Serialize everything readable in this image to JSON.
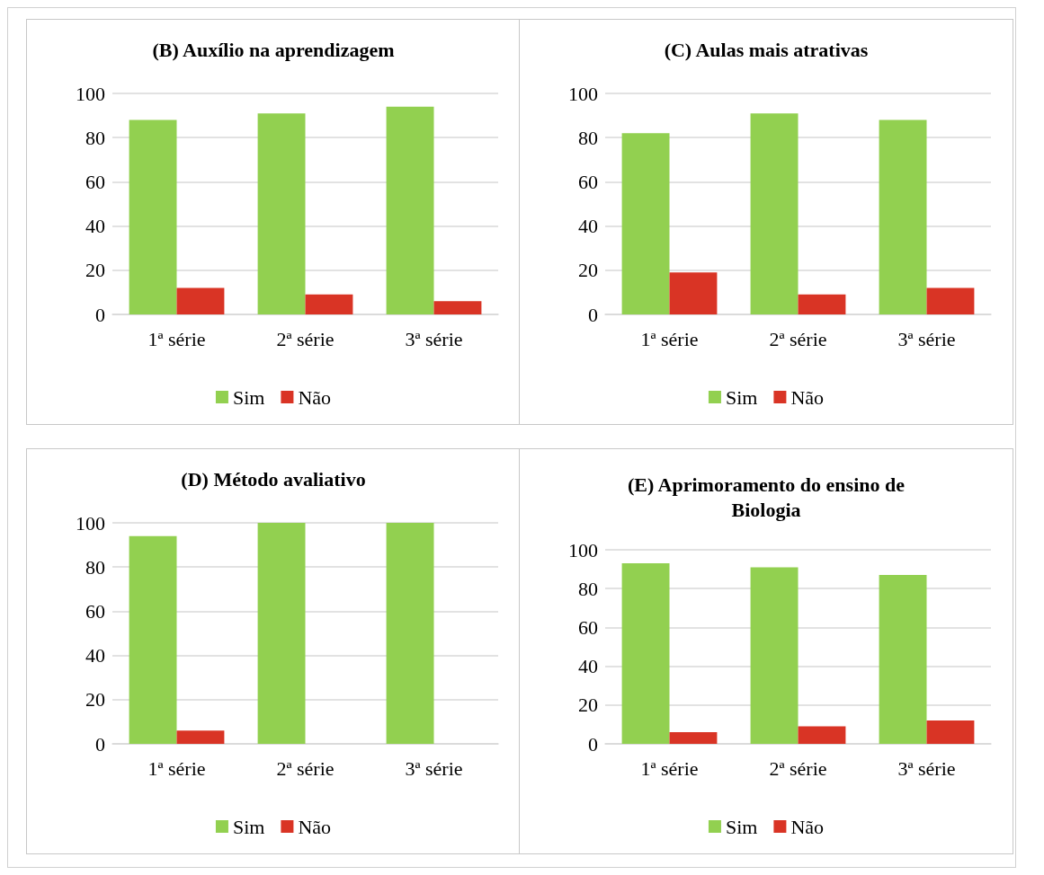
{
  "chart_data": [
    {
      "type": "bar",
      "title": "(B) Auxílio na aprendizagem",
      "categories": [
        "1ª série",
        "2ª série",
        "3ª série"
      ],
      "series": [
        {
          "name": "Sim",
          "color": "#92d050",
          "values": [
            88,
            91,
            94
          ]
        },
        {
          "name": "Não",
          "color": "#d93425",
          "values": [
            12,
            9,
            6
          ]
        }
      ],
      "ylim": [
        0,
        100
      ],
      "yticks": [
        0,
        20,
        40,
        60,
        80,
        100
      ],
      "grid": "y",
      "legend": "bottom"
    },
    {
      "type": "bar",
      "title": "(C) Aulas mais atrativas",
      "categories": [
        "1ª série",
        "2ª série",
        "3ª série"
      ],
      "series": [
        {
          "name": "Sim",
          "color": "#92d050",
          "values": [
            82,
            91,
            88
          ]
        },
        {
          "name": "Não",
          "color": "#d93425",
          "values": [
            19,
            9,
            12
          ]
        }
      ],
      "ylim": [
        0,
        100
      ],
      "yticks": [
        0,
        20,
        40,
        60,
        80,
        100
      ],
      "grid": "y",
      "legend": "bottom"
    },
    {
      "type": "bar",
      "title": "(D) Método avaliativo",
      "categories": [
        "1ª série",
        "2ª série",
        "3ª série"
      ],
      "series": [
        {
          "name": "Sim",
          "color": "#92d050",
          "values": [
            94,
            100,
            100
          ]
        },
        {
          "name": "Não",
          "color": "#d93425",
          "values": [
            6,
            0,
            0
          ]
        }
      ],
      "ylim": [
        0,
        100
      ],
      "yticks": [
        0,
        20,
        40,
        60,
        80,
        100
      ],
      "grid": "y",
      "legend": "bottom"
    },
    {
      "type": "bar",
      "title": "(E) Aprimoramento do ensino de\nBiologia",
      "categories": [
        "1ª série",
        "2ª série",
        "3ª série"
      ],
      "series": [
        {
          "name": "Sim",
          "color": "#92d050",
          "values": [
            93,
            91,
            87
          ]
        },
        {
          "name": "Não",
          "color": "#d93425",
          "values": [
            6,
            9,
            12
          ]
        }
      ],
      "ylim": [
        0,
        100
      ],
      "yticks": [
        0,
        20,
        40,
        60,
        80,
        100
      ],
      "grid": "y",
      "legend": "bottom"
    }
  ]
}
